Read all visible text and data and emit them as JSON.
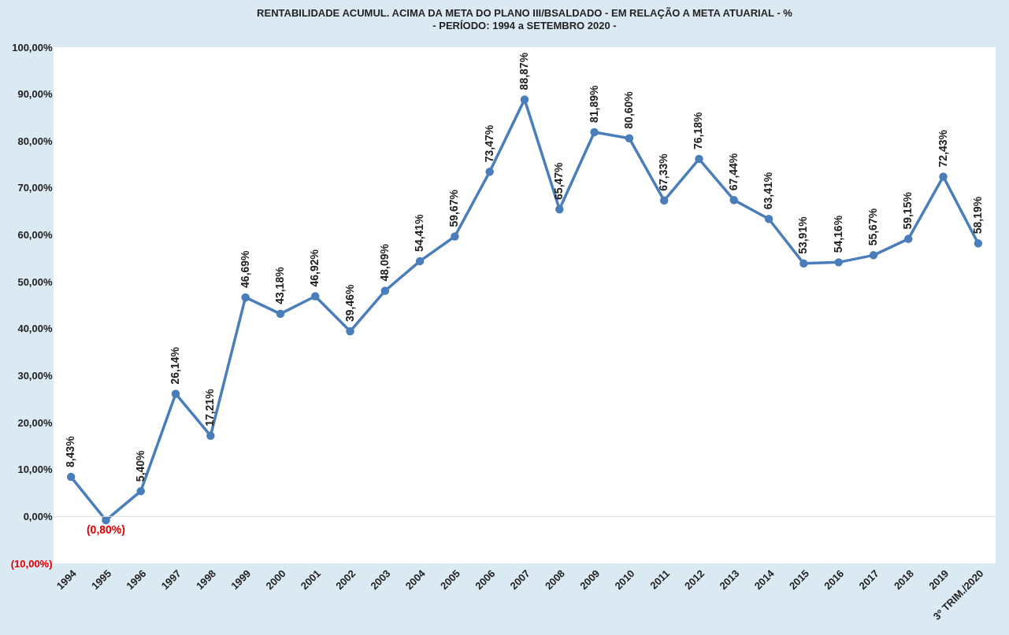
{
  "chart_data": {
    "type": "line",
    "title": "RENTABILIDADE  ACUMUL. ACIMA DA META DO PLANO III/BSALDADO - EM RELAÇÃO A META ATUARIAL - %",
    "subtitle": "- PERÍODO:  1994 a SETEMBRO  2020 -",
    "categories": [
      "1994",
      "1995",
      "1996",
      "1997",
      "1998",
      "1999",
      "2000",
      "2001",
      "2002",
      "2003",
      "2004",
      "2005",
      "2006",
      "2007",
      "2008",
      "2009",
      "2010",
      "2011",
      "2012",
      "2013",
      "2014",
      "2015",
      "2016",
      "2017",
      "2018",
      "2019",
      "3º TRIM./2020"
    ],
    "series": [
      {
        "color": "#4a7ebb",
        "values": [
          8.43,
          -0.8,
          5.4,
          26.14,
          17.21,
          46.69,
          43.18,
          46.92,
          39.46,
          48.09,
          54.41,
          59.67,
          73.47,
          88.87,
          65.47,
          81.89,
          80.6,
          67.33,
          76.18,
          67.44,
          63.41,
          53.91,
          54.16,
          55.67,
          59.15,
          72.43,
          58.19
        ],
        "value_labels": [
          "8,43%",
          "(0,80%)",
          "5,40%",
          "26,14%",
          "17,21%",
          "46,69%",
          "43,18%",
          "46,92%",
          "39,46%",
          "48,09%",
          "54,41%",
          "59,67%",
          "73,47%",
          "88,87%",
          "65,47%",
          "81,89%",
          "80,60%",
          "67,33%",
          "76,18%",
          "67,44%",
          "63,41%",
          "53,91%",
          "54,16%",
          "55,67%",
          "59,15%",
          "72,43%",
          "58,19%"
        ]
      }
    ],
    "ylim": [
      -10,
      100
    ],
    "yticks": [
      {
        "value": -10,
        "label": "(10,00%)"
      },
      {
        "value": 0,
        "label": "0,00%"
      },
      {
        "value": 10,
        "label": "10,00%"
      },
      {
        "value": 20,
        "label": "20,00%"
      },
      {
        "value": 30,
        "label": "30,00%"
      },
      {
        "value": 40,
        "label": "40,00%"
      },
      {
        "value": 50,
        "label": "50,00%"
      },
      {
        "value": 60,
        "label": "60,00%"
      },
      {
        "value": 70,
        "label": "70,00%"
      },
      {
        "value": 80,
        "label": "80,00%"
      },
      {
        "value": 90,
        "label": "90,00%"
      },
      {
        "value": 100,
        "label": "100,00%"
      }
    ],
    "ref_lines": [
      {
        "axis": "y",
        "value": 0,
        "color": "#d9d9d9"
      }
    ],
    "marker": "circle"
  }
}
